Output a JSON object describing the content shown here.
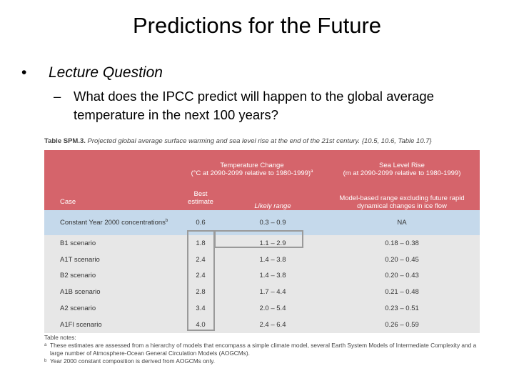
{
  "slide": {
    "title": "Predictions for the Future",
    "bullet": "Lecture Question",
    "sub_bullet": "What does the IPCC predict will happen to the global average temperature in the next 100 years?"
  },
  "table": {
    "caption_label": "Table SPM.3.",
    "caption": "Projected global average surface warming and sea level rise at the end of the 21st century. {10.5, 10.6, Table 10.7}",
    "group_headers": [
      {
        "title": "Temperature Change",
        "subtitle": "(°C at 2090-2099 relative to 1980-1999)",
        "marker": "a"
      },
      {
        "title": "Sea Level Rise",
        "subtitle": "(m at 2090-2099 relative to 1980-1999)"
      }
    ],
    "columns": [
      "Case",
      "Best estimate",
      "Likely range",
      "Model-based range excluding future rapid dynamical changes in ice flow"
    ],
    "rows": [
      {
        "case": "Constant Year 2000 concentrations",
        "marker": "b",
        "best": "0.6",
        "likely": "0.3 – 0.9",
        "sea": "NA"
      },
      {
        "case": "B1 scenario",
        "best": "1.8",
        "likely": "1.1 – 2.9",
        "sea": "0.18 – 0.38"
      },
      {
        "case": "A1T scenario",
        "best": "2.4",
        "likely": "1.4 – 3.8",
        "sea": "0.20 – 0.45"
      },
      {
        "case": "B2 scenario",
        "best": "2.4",
        "likely": "1.4 – 3.8",
        "sea": "0.20 – 0.43"
      },
      {
        "case": "A1B scenario",
        "best": "2.8",
        "likely": "1.7 – 4.4",
        "sea": "0.21 – 0.48"
      },
      {
        "case": "A2 scenario",
        "best": "3.4",
        "likely": "2.0 – 5.4",
        "sea": "0.23 – 0.51"
      },
      {
        "case": "A1FI scenario",
        "best": "4.0",
        "likely": "2.4 – 6.4",
        "sea": "0.26 – 0.59"
      }
    ],
    "notes_title": "Table notes:",
    "notes": [
      {
        "marker": "a",
        "text": "These estimates are assessed from a hierarchy of models that encompass a simple climate model, several Earth System Models of Intermediate Complexity and a large number of Atmosphere-Ocean General Circulation Models (AOGCMs)."
      },
      {
        "marker": "b",
        "text": "Year 2000 constant composition is derived from AOGCMs only."
      }
    ]
  }
}
